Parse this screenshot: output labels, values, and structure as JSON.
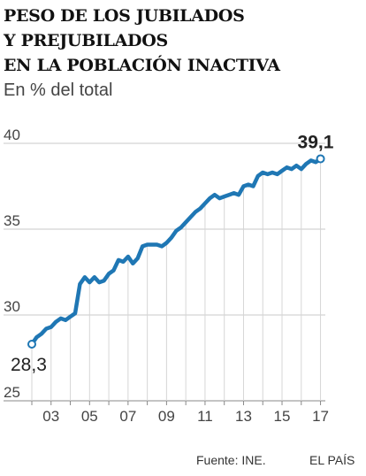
{
  "chart_data": {
    "type": "line",
    "title_lines": [
      "PESO DE LOS JUBILADOS",
      "Y PREJUBILADOS",
      "EN LA POBLACIÓN INACTIVA"
    ],
    "subtitle": "En % del total",
    "ylim": [
      25,
      40
    ],
    "y_ticks": [
      25,
      30,
      35,
      40
    ],
    "xlim": [
      2002.0,
      2017.25
    ],
    "x_ticks": [
      2003,
      2005,
      2007,
      2009,
      2011,
      2013,
      2015,
      2017
    ],
    "x_tick_labels": [
      "03",
      "05",
      "07",
      "09",
      "11",
      "13",
      "15",
      "17"
    ],
    "grid": true,
    "color": "#1f77b4",
    "series": [
      {
        "x": [
          2002.0,
          2002.25,
          2002.5,
          2002.75,
          2003.0,
          2003.25,
          2003.5,
          2003.75,
          2004.0,
          2004.25,
          2004.5,
          2004.75,
          2005.0,
          2005.25,
          2005.5,
          2005.75,
          2006.0,
          2006.25,
          2006.5,
          2006.75,
          2007.0,
          2007.25,
          2007.5,
          2007.75,
          2008.0,
          2008.25,
          2008.5,
          2008.75,
          2009.0,
          2009.25,
          2009.5,
          2009.75,
          2010.0,
          2010.25,
          2010.5,
          2010.75,
          2011.0,
          2011.25,
          2011.5,
          2011.75,
          2012.0,
          2012.25,
          2012.5,
          2012.75,
          2013.0,
          2013.25,
          2013.5,
          2013.75,
          2014.0,
          2014.25,
          2014.5,
          2014.75,
          2015.0,
          2015.25,
          2015.5,
          2015.75,
          2016.0,
          2016.25,
          2016.5,
          2016.75,
          2017.0
        ],
        "values": [
          28.3,
          28.7,
          28.9,
          29.2,
          29.3,
          29.6,
          29.8,
          29.7,
          29.9,
          30.1,
          31.8,
          32.2,
          31.9,
          32.2,
          31.9,
          32.0,
          32.4,
          32.6,
          33.2,
          33.1,
          33.4,
          33.0,
          33.3,
          34.0,
          34.1,
          34.1,
          34.1,
          34.0,
          34.2,
          34.5,
          34.9,
          35.1,
          35.4,
          35.7,
          36.0,
          36.2,
          36.5,
          36.8,
          37.0,
          36.8,
          36.9,
          37.0,
          37.1,
          37.0,
          37.5,
          37.6,
          37.5,
          38.1,
          38.3,
          38.2,
          38.3,
          38.2,
          38.4,
          38.6,
          38.5,
          38.7,
          38.5,
          38.8,
          39.0,
          38.9,
          39.1
        ]
      }
    ],
    "start_label": "28,3",
    "end_label": "39,1"
  },
  "footer": {
    "source": "Fuente: INE.",
    "brand": "EL PAÍS"
  }
}
